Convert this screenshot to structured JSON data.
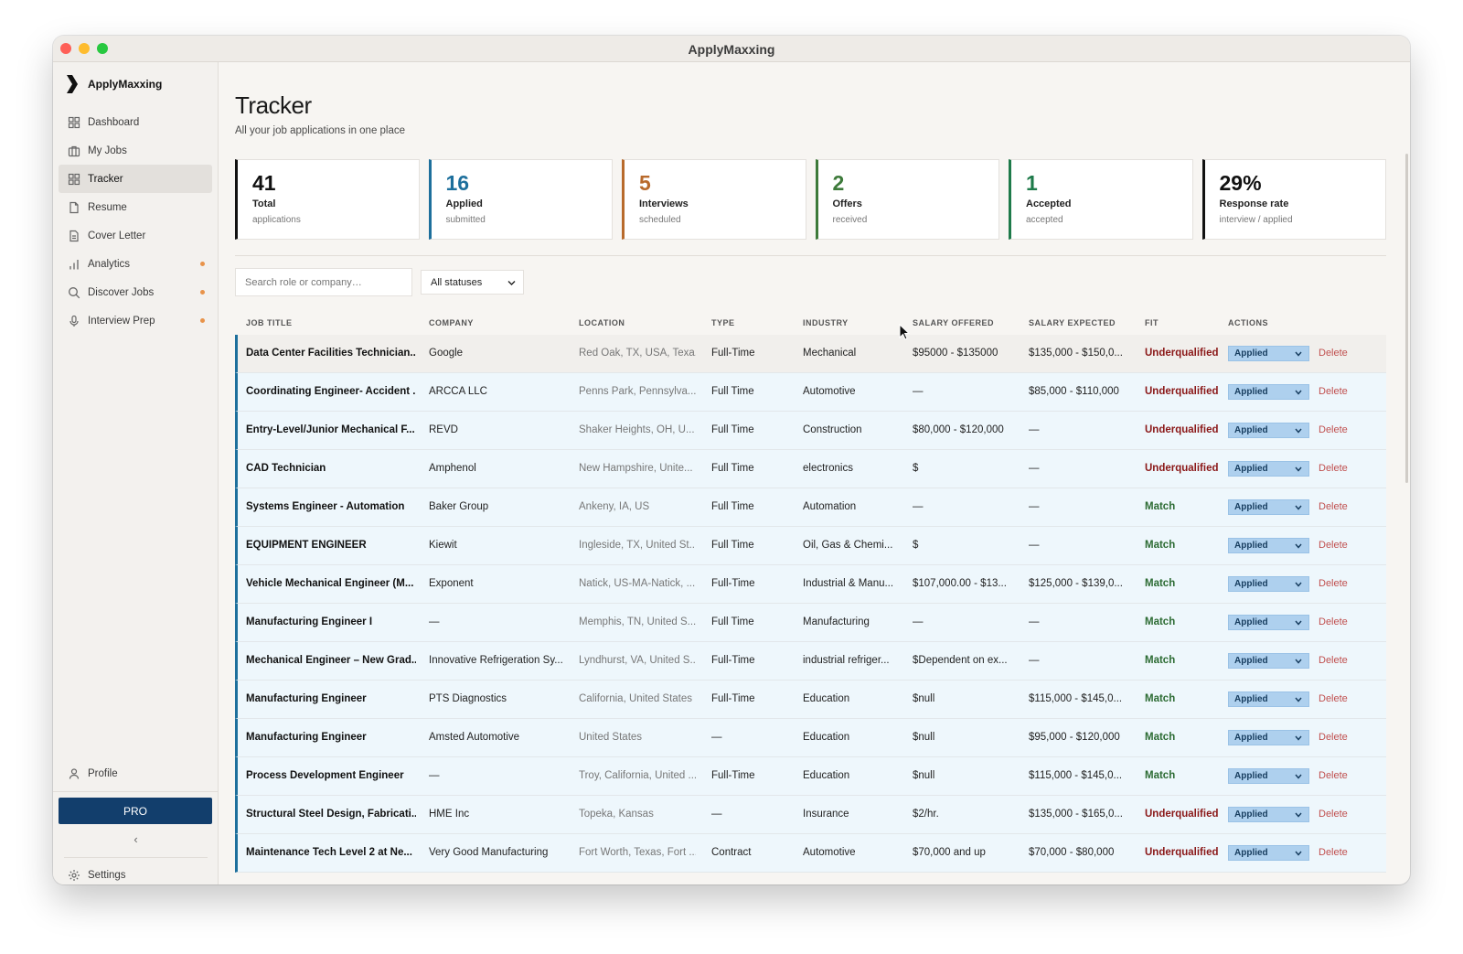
{
  "window": {
    "title": "ApplyMaxxing"
  },
  "sidebar": {
    "brand": "ApplyMaxxing",
    "items": [
      {
        "label": "Dashboard",
        "icon": "grid-icon",
        "active": false,
        "dot": false
      },
      {
        "label": "My Jobs",
        "icon": "briefcase-icon",
        "active": false,
        "dot": false
      },
      {
        "label": "Tracker",
        "icon": "grid-icon",
        "active": true,
        "dot": false
      },
      {
        "label": "Resume",
        "icon": "document-icon",
        "active": false,
        "dot": false
      },
      {
        "label": "Cover Letter",
        "icon": "document-lines-icon",
        "active": false,
        "dot": false
      },
      {
        "label": "Analytics",
        "icon": "bar-chart-icon",
        "active": false,
        "dot": true
      },
      {
        "label": "Discover Jobs",
        "icon": "search-icon",
        "active": false,
        "dot": true
      },
      {
        "label": "Interview Prep",
        "icon": "microphone-icon",
        "active": false,
        "dot": true
      }
    ],
    "profile": "Profile",
    "pro": "PRO",
    "collapse": "‹",
    "settings": "Settings",
    "dot_color": "#e8934a"
  },
  "page": {
    "title": "Tracker",
    "subtitle": "All your job applications in one place"
  },
  "stats": [
    {
      "value": "41",
      "label": "Total",
      "sub": "applications",
      "color": "#111111"
    },
    {
      "value": "16",
      "label": "Applied",
      "sub": "submitted",
      "color": "#1d6f9c"
    },
    {
      "value": "5",
      "label": "Interviews",
      "sub": "scheduled",
      "color": "#b86a2c"
    },
    {
      "value": "2",
      "label": "Offers",
      "sub": "received",
      "color": "#3d7a3a"
    },
    {
      "value": "1",
      "label": "Accepted",
      "sub": "accepted",
      "color": "#1e7a4a"
    },
    {
      "value": "29%",
      "label": "Response rate",
      "sub": "interview / applied",
      "color": "#111111"
    }
  ],
  "filters": {
    "search_placeholder": "Search role or company…",
    "status": "All statuses"
  },
  "table": {
    "headers": [
      "JOB TITLE",
      "COMPANY",
      "LOCATION",
      "TYPE",
      "INDUSTRY",
      "SALARY OFFERED",
      "SALARY EXPECTED",
      "FIT",
      "ACTIONS"
    ],
    "rows": [
      {
        "title": "Data Center Facilities Technician...",
        "company": "Google",
        "location": "Red Oak, TX, USA, Texa...",
        "type": "Full-Time",
        "industry": "Mechanical",
        "salary_offered": "$95000 - $135000",
        "salary_expected": "$135,000 - $150,0...",
        "fit": "Underqualified",
        "status": "Applied",
        "delete": "Delete"
      },
      {
        "title": "Coordinating Engineer- Accident ...",
        "company": "ARCCA LLC",
        "location": "Penns Park, Pennsylva...",
        "type": "Full Time",
        "industry": "Automotive",
        "salary_offered": "—",
        "salary_expected": "$85,000 - $110,000",
        "fit": "Underqualified",
        "status": "Applied",
        "delete": "Delete"
      },
      {
        "title": "Entry-Level/Junior Mechanical F...",
        "company": "REVD",
        "location": "Shaker Heights, OH, U...",
        "type": "Full Time",
        "industry": "Construction",
        "salary_offered": "$80,000 - $120,000",
        "salary_expected": "—",
        "fit": "Underqualified",
        "status": "Applied",
        "delete": "Delete"
      },
      {
        "title": "CAD Technician",
        "company": "Amphenol",
        "location": "New Hampshire, Unite...",
        "type": "Full Time",
        "industry": "electronics",
        "salary_offered": "$",
        "salary_expected": "—",
        "fit": "Underqualified",
        "status": "Applied",
        "delete": "Delete"
      },
      {
        "title": "Systems Engineer - Automation",
        "company": "Baker Group",
        "location": "Ankeny, IA, US",
        "type": "Full Time",
        "industry": "Automation",
        "salary_offered": "—",
        "salary_expected": "—",
        "fit": "Match",
        "status": "Applied",
        "delete": "Delete"
      },
      {
        "title": "EQUIPMENT ENGINEER",
        "company": "Kiewit",
        "location": "Ingleside, TX, United St...",
        "type": "Full Time",
        "industry": "Oil, Gas & Chemi...",
        "salary_offered": "$",
        "salary_expected": "—",
        "fit": "Match",
        "status": "Applied",
        "delete": "Delete"
      },
      {
        "title": "Vehicle Mechanical Engineer (M...",
        "company": "Exponent",
        "location": "Natick, US-MA-Natick, ...",
        "type": "Full-Time",
        "industry": "Industrial & Manu...",
        "salary_offered": "$107,000.00 - $13...",
        "salary_expected": "$125,000 - $139,0...",
        "fit": "Match",
        "status": "Applied",
        "delete": "Delete"
      },
      {
        "title": "Manufacturing Engineer I",
        "company": "—",
        "location": "Memphis, TN, United S...",
        "type": "Full Time",
        "industry": "Manufacturing",
        "salary_offered": "—",
        "salary_expected": "—",
        "fit": "Match",
        "status": "Applied",
        "delete": "Delete"
      },
      {
        "title": "Mechanical Engineer – New Grad...",
        "company": "Innovative Refrigeration Sy...",
        "location": "Lyndhurst, VA, United S...",
        "type": "Full-Time",
        "industry": "industrial refriger...",
        "salary_offered": "$Dependent on ex...",
        "salary_expected": "—",
        "fit": "Match",
        "status": "Applied",
        "delete": "Delete"
      },
      {
        "title": "Manufacturing Engineer",
        "company": "PTS Diagnostics",
        "location": "California, United States",
        "type": "Full-Time",
        "industry": "Education",
        "salary_offered": "$null",
        "salary_expected": "$115,000 - $145,0...",
        "fit": "Match",
        "status": "Applied",
        "delete": "Delete"
      },
      {
        "title": "Manufacturing Engineer",
        "company": "Amsted Automotive",
        "location": "United States",
        "type": "—",
        "industry": "Education",
        "salary_offered": "$null",
        "salary_expected": "$95,000 - $120,000",
        "fit": "Match",
        "status": "Applied",
        "delete": "Delete"
      },
      {
        "title": "Process Development Engineer",
        "company": "—",
        "location": "Troy, California, United ...",
        "type": "Full-Time",
        "industry": "Education",
        "salary_offered": "$null",
        "salary_expected": "$115,000 - $145,0...",
        "fit": "Match",
        "status": "Applied",
        "delete": "Delete"
      },
      {
        "title": "Structural Steel Design, Fabricati...",
        "company": "HME Inc",
        "location": "Topeka, Kansas",
        "type": "—",
        "industry": "Insurance",
        "salary_offered": "$2/hr.",
        "salary_expected": "$135,000 - $165,0...",
        "fit": "Underqualified",
        "status": "Applied",
        "delete": "Delete"
      },
      {
        "title": "Maintenance Tech Level 2 at Ne...",
        "company": "Very Good Manufacturing",
        "location": "Fort Worth, Texas, Fort ...",
        "type": "Contract",
        "industry": "Automotive",
        "salary_offered": "$70,000 and up",
        "salary_expected": "$70,000 - $80,000",
        "fit": "Underqualified",
        "status": "Applied",
        "delete": "Delete"
      }
    ]
  }
}
